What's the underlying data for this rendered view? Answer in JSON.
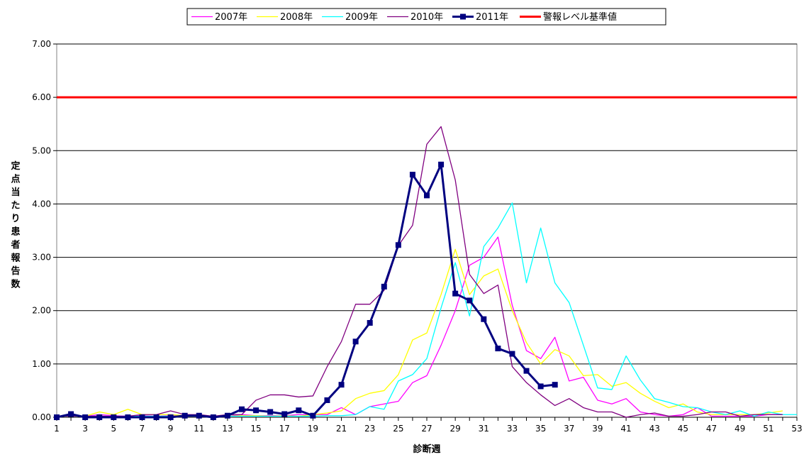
{
  "chart_data": {
    "type": "line",
    "xlabel": "診断週",
    "ylabel": "定点当たり患者報告数",
    "xlim": [
      1,
      53
    ],
    "ylim": [
      0,
      7
    ],
    "yticks": [
      "0.00",
      "1.00",
      "2.00",
      "3.00",
      "4.00",
      "5.00",
      "6.00",
      "7.00"
    ],
    "xticks": [
      "1",
      "3",
      "5",
      "7",
      "9",
      "11",
      "13",
      "15",
      "17",
      "19",
      "21",
      "23",
      "25",
      "27",
      "29",
      "31",
      "33",
      "35",
      "37",
      "39",
      "41",
      "43",
      "45",
      "47",
      "49",
      "51",
      "53"
    ],
    "grid": true,
    "legend_position": "top",
    "series": [
      {
        "name": "2007年",
        "color": "#ff00ff",
        "marker": false,
        "x": [
          1,
          2,
          3,
          4,
          5,
          6,
          7,
          8,
          9,
          10,
          11,
          12,
          13,
          14,
          15,
          16,
          17,
          18,
          19,
          20,
          21,
          22,
          23,
          24,
          25,
          26,
          27,
          28,
          29,
          30,
          31,
          32,
          33,
          34,
          35,
          36,
          37,
          38,
          39,
          40,
          41,
          42,
          43,
          44,
          45,
          46,
          47,
          48,
          49,
          50,
          51,
          52
        ],
        "values": [
          0.02,
          0.03,
          0.02,
          0.05,
          0.03,
          0.02,
          0.03,
          0.02,
          0.03,
          0.03,
          0.02,
          0.02,
          0.02,
          0.05,
          0.03,
          0.03,
          0.03,
          0.05,
          0.05,
          0.05,
          0.18,
          0.05,
          0.2,
          0.25,
          0.3,
          0.65,
          0.78,
          1.35,
          2.0,
          2.85,
          3.0,
          3.38,
          2.1,
          1.25,
          1.1,
          1.5,
          0.68,
          0.75,
          0.32,
          0.25,
          0.35,
          0.1,
          0.05,
          0.02,
          0.05,
          0.18,
          0.02,
          0.02,
          0.02,
          0.02,
          0.05,
          0.05
        ]
      },
      {
        "name": "2008年",
        "color": "#ffff00",
        "marker": false,
        "x": [
          1,
          2,
          3,
          4,
          5,
          6,
          7,
          8,
          9,
          10,
          11,
          12,
          13,
          14,
          15,
          16,
          17,
          18,
          19,
          20,
          21,
          22,
          23,
          24,
          25,
          26,
          27,
          28,
          29,
          30,
          31,
          32,
          33,
          34,
          35,
          36,
          37,
          38,
          39,
          40,
          41,
          42,
          43,
          44,
          45,
          46,
          47,
          48,
          49,
          50,
          51,
          52
        ],
        "values": [
          0.02,
          0.03,
          0.02,
          0.1,
          0.05,
          0.15,
          0.05,
          0.05,
          0.05,
          0.03,
          0.03,
          0.02,
          0.02,
          0.03,
          0.03,
          0.02,
          0.03,
          0.02,
          0.05,
          0.08,
          0.12,
          0.35,
          0.45,
          0.5,
          0.8,
          1.45,
          1.58,
          2.3,
          3.15,
          2.3,
          2.65,
          2.78,
          2.0,
          1.4,
          1.0,
          1.27,
          1.15,
          0.78,
          0.8,
          0.58,
          0.65,
          0.45,
          0.3,
          0.18,
          0.25,
          0.1,
          0.05,
          0.05,
          0.05,
          0.05,
          0.08,
          0.12
        ]
      },
      {
        "name": "2009年",
        "color": "#00ffff",
        "marker": false,
        "x": [
          1,
          2,
          3,
          4,
          5,
          6,
          7,
          8,
          9,
          10,
          11,
          12,
          13,
          14,
          15,
          16,
          17,
          18,
          19,
          20,
          21,
          22,
          23,
          24,
          25,
          26,
          27,
          28,
          29,
          30,
          31,
          32,
          33,
          34,
          35,
          36,
          37,
          38,
          39,
          40,
          41,
          42,
          43,
          44,
          45,
          46,
          47,
          48,
          49,
          50,
          51,
          52,
          53
        ],
        "values": [
          0.02,
          0.02,
          0.02,
          0.02,
          0.02,
          0.02,
          0.02,
          0.02,
          0.02,
          0.02,
          0.02,
          0.02,
          0.02,
          0.02,
          0.02,
          0.02,
          0.02,
          0.02,
          0.02,
          0.03,
          0.03,
          0.05,
          0.2,
          0.15,
          0.68,
          0.8,
          1.1,
          2.05,
          2.9,
          1.9,
          3.2,
          3.55,
          4.02,
          2.52,
          3.55,
          2.52,
          2.15,
          1.35,
          0.55,
          0.52,
          1.15,
          0.7,
          0.35,
          0.28,
          0.2,
          0.18,
          0.1,
          0.05,
          0.12,
          0.02,
          0.1,
          0.05,
          0.05
        ]
      },
      {
        "name": "2010年",
        "color": "#800080",
        "marker": false,
        "x": [
          1,
          2,
          3,
          4,
          5,
          6,
          7,
          8,
          9,
          10,
          11,
          12,
          13,
          14,
          15,
          16,
          17,
          18,
          19,
          20,
          21,
          22,
          23,
          24,
          25,
          26,
          27,
          28,
          29,
          30,
          31,
          32,
          33,
          34,
          35,
          36,
          37,
          38,
          39,
          40,
          41,
          42,
          43,
          44,
          45,
          46,
          47,
          48,
          49,
          50,
          51,
          52
        ],
        "values": [
          0.02,
          0.02,
          0.02,
          0.02,
          0.02,
          0.02,
          0.05,
          0.05,
          0.12,
          0.05,
          0.05,
          0.02,
          0.05,
          0.05,
          0.32,
          0.42,
          0.42,
          0.38,
          0.4,
          0.95,
          1.42,
          2.12,
          2.12,
          2.38,
          3.22,
          3.6,
          5.12,
          5.45,
          4.45,
          2.68,
          2.32,
          2.48,
          0.95,
          0.65,
          0.42,
          0.22,
          0.35,
          0.18,
          0.1,
          0.1,
          0.0,
          0.05,
          0.08,
          0.02,
          0.02,
          0.05,
          0.1,
          0.1,
          0.02,
          0.05,
          0.05,
          0.05
        ]
      },
      {
        "name": "2011年",
        "color": "#000080",
        "marker": true,
        "x": [
          1,
          2,
          3,
          4,
          5,
          6,
          7,
          8,
          9,
          10,
          11,
          12,
          13,
          14,
          15,
          16,
          17,
          18,
          19,
          20,
          21,
          22,
          23,
          24,
          25,
          26,
          27,
          28,
          29,
          30,
          31,
          32,
          33,
          34,
          35,
          36
        ],
        "values": [
          0.0,
          0.06,
          0.0,
          0.0,
          0.0,
          0.0,
          0.0,
          0.0,
          0.0,
          0.03,
          0.03,
          0.0,
          0.03,
          0.15,
          0.13,
          0.1,
          0.06,
          0.13,
          0.03,
          0.32,
          0.61,
          1.42,
          1.77,
          2.45,
          3.23,
          4.55,
          4.16,
          4.74,
          2.32,
          2.19,
          1.84,
          1.29,
          1.19,
          0.87,
          0.58,
          0.61
        ]
      },
      {
        "name": "警報レベル基準値",
        "color": "#ff0000",
        "marker": false,
        "x": [
          1,
          53
        ],
        "values": [
          6.0,
          6.0
        ]
      }
    ]
  }
}
